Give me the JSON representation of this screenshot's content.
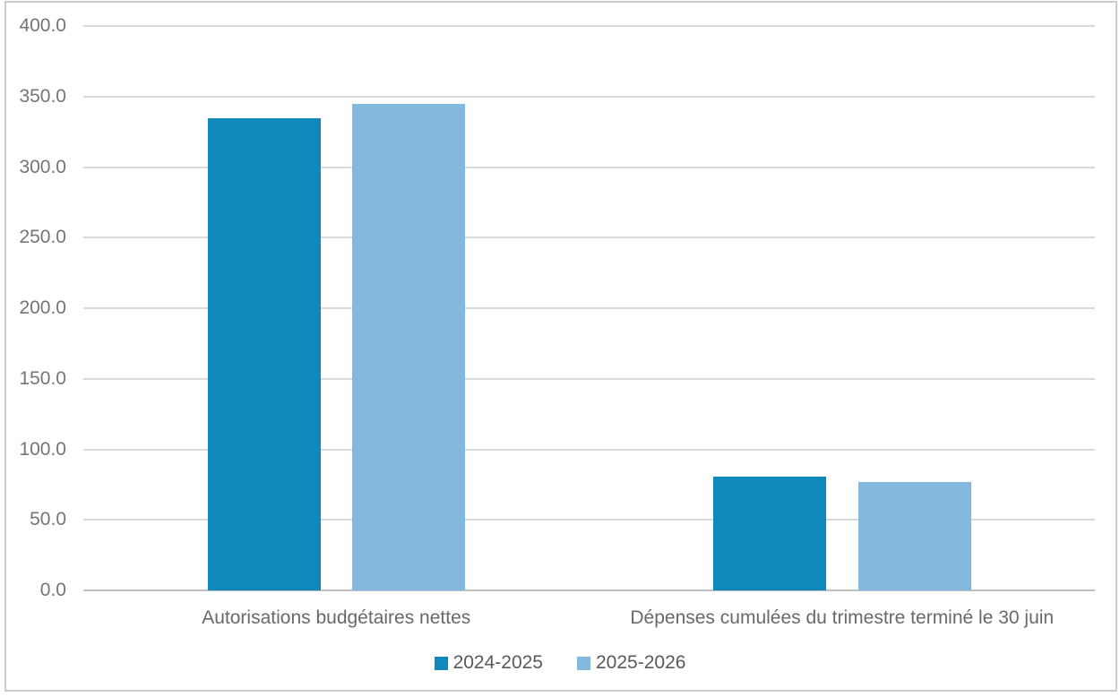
{
  "chart_data": {
    "type": "bar",
    "title": "",
    "categories": [
      "Autorisations budgétaires nettes",
      "Dépenses cumulées du trimestre terminé le 30 juin"
    ],
    "series": [
      {
        "name": "2024-2025",
        "color": "#0F89BC",
        "values": [
          334.8,
          80.4
        ]
      },
      {
        "name": "2025-2026",
        "color": "#84B9DF",
        "values": [
          345.0,
          77.0
        ]
      }
    ],
    "ylim": [
      0,
      400
    ],
    "ytick_step": 50,
    "ytick_labels": [
      "400.0",
      "350.0",
      "300.0",
      "250.0",
      "200.0",
      "150.0",
      "100.0",
      "50.0",
      "0.0"
    ],
    "grid": true,
    "legend_position": "bottom"
  },
  "style": {
    "gridline_color": "#D9D9D9",
    "axis_line_color": "#C0C0C0",
    "tick_text_color": "#757575",
    "category_text_color": "#696969",
    "legend_text_color": "#595959",
    "frame_border_color": "#CCCCCC",
    "background": "#FFFFFF"
  }
}
